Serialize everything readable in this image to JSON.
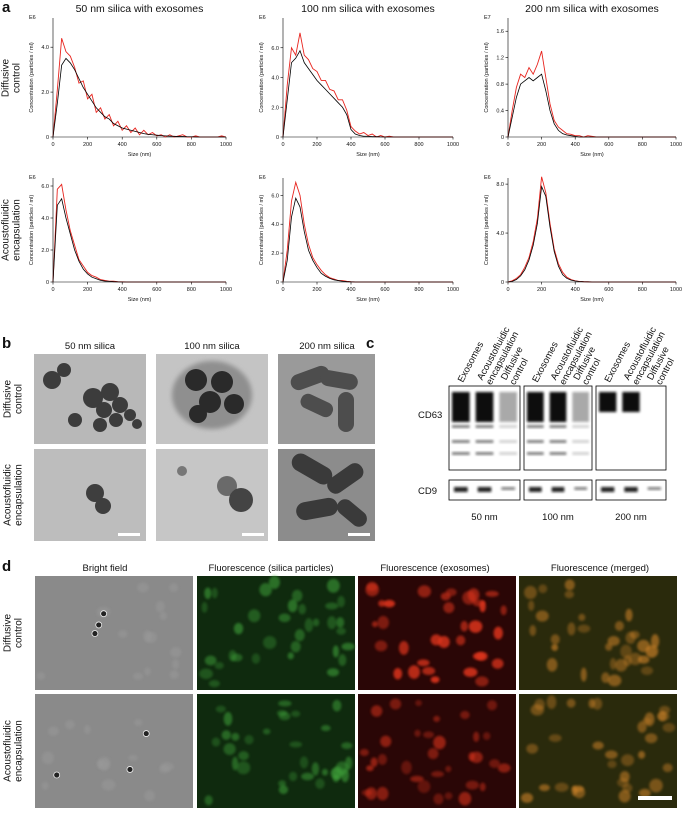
{
  "panel_a": {
    "letter": "a",
    "row_labels": [
      [
        "Diffusive",
        "control"
      ],
      [
        "Acoustofluidic",
        "encapsulation"
      ]
    ]
  },
  "chart_data": [
    {
      "type": "line",
      "title": "50 nm silica with exosomes",
      "multiplier": "E6",
      "x_label": "Size (nm)",
      "y_label": "Concentration (particles / ml)",
      "x": [
        0,
        25,
        50,
        75,
        100,
        125,
        150,
        175,
        200,
        225,
        250,
        275,
        300,
        325,
        350,
        375,
        400,
        425,
        450,
        475,
        500,
        525,
        550,
        575,
        600,
        625,
        650,
        675,
        700,
        725,
        750,
        775,
        800,
        825,
        850,
        875,
        900,
        925,
        950,
        975,
        1000
      ],
      "series": [
        {
          "color": "#e8251f",
          "values": [
            0,
            2.1,
            4.4,
            3.8,
            3.6,
            3.1,
            2.4,
            2.5,
            1.7,
            1.9,
            1.1,
            1.3,
            0.8,
            1.0,
            0.5,
            0.7,
            0.3,
            0.5,
            0.2,
            0.4,
            0.1,
            0.3,
            0.1,
            0.2,
            0.05,
            0.1,
            0,
            0.1,
            0,
            0.05,
            0.1,
            0,
            0,
            0.05,
            0,
            0,
            0,
            0,
            0,
            0.05,
            0
          ]
        },
        {
          "color": "#000000",
          "values": [
            0,
            1.5,
            3.2,
            3.5,
            3.3,
            3.0,
            2.6,
            2.2,
            1.9,
            1.6,
            1.3,
            1.1,
            0.9,
            0.8,
            0.6,
            0.5,
            0.4,
            0.35,
            0.3,
            0.25,
            0.2,
            0.15,
            0.12,
            0.1,
            0.08,
            0.06,
            0.05,
            0.04,
            0.03,
            0.02,
            0.02,
            0.01,
            0.01,
            0,
            0,
            0,
            0,
            0,
            0,
            0,
            0
          ]
        }
      ],
      "xlim": [
        0,
        1000
      ],
      "xticks": [
        0,
        200,
        400,
        600,
        800,
        1000
      ],
      "ylim": [
        0,
        5.3
      ],
      "yticks": [
        0,
        {
          "value": 2,
          "label": "2.0"
        },
        {
          "value": 4,
          "label": "4.0"
        }
      ]
    },
    {
      "type": "line",
      "title": "100 nm silica with exosomes",
      "multiplier": "E6",
      "x_label": "Size (nm)",
      "y_label": "Concentration (particles / ml)",
      "x": [
        0,
        25,
        50,
        75,
        100,
        125,
        150,
        175,
        200,
        225,
        250,
        275,
        300,
        325,
        350,
        375,
        400,
        425,
        450,
        475,
        500,
        525,
        550,
        575,
        600,
        625,
        650,
        675,
        700,
        725,
        750,
        775,
        800,
        825,
        850,
        875,
        900,
        925,
        950,
        975,
        1000
      ],
      "series": [
        {
          "color": "#e8251f",
          "values": [
            0,
            3.5,
            6.0,
            5.5,
            7.0,
            5.5,
            5.2,
            4.6,
            4.4,
            3.8,
            3.8,
            3.2,
            3.1,
            2.5,
            2.5,
            1.8,
            0.7,
            0.4,
            0.2,
            0.3,
            0.1,
            0.2,
            0,
            0.1,
            0,
            0.05,
            0,
            0,
            0,
            0,
            0,
            0,
            0,
            0,
            0,
            0,
            0,
            0,
            0,
            0,
            0
          ]
        },
        {
          "color": "#000000",
          "values": [
            0,
            2.5,
            5.0,
            5.3,
            5.8,
            5.0,
            4.6,
            4.2,
            3.8,
            3.5,
            3.2,
            2.9,
            2.6,
            2.3,
            2.0,
            1.5,
            0.5,
            0.2,
            0.1,
            0.05,
            0.05,
            0.02,
            0.02,
            0.01,
            0,
            0,
            0,
            0,
            0,
            0,
            0,
            0,
            0,
            0,
            0,
            0,
            0,
            0,
            0,
            0,
            0
          ]
        }
      ],
      "xlim": [
        0,
        1000
      ],
      "xticks": [
        0,
        200,
        400,
        600,
        800,
        1000
      ],
      "ylim": [
        0,
        8
      ],
      "yticks": [
        0,
        {
          "value": 2,
          "label": "2.0"
        },
        {
          "value": 4,
          "label": "4.0"
        },
        {
          "value": 6,
          "label": "6.0"
        }
      ]
    },
    {
      "type": "line",
      "title": "200 nm silica with exosomes",
      "multiplier": "E7",
      "x_label": "Size (nm)",
      "y_label": "Concentration (particles / ml)",
      "x": [
        0,
        25,
        50,
        75,
        100,
        125,
        150,
        175,
        200,
        225,
        250,
        275,
        300,
        325,
        350,
        375,
        400,
        425,
        450,
        475,
        500,
        525,
        550,
        575,
        600,
        625,
        650,
        675,
        700,
        725,
        750,
        775,
        800,
        825,
        850,
        875,
        900,
        925,
        950,
        975,
        1000
      ],
      "series": [
        {
          "color": "#e8251f",
          "values": [
            0,
            0.4,
            0.75,
            0.95,
            0.9,
            1.05,
            0.95,
            1.1,
            1.3,
            0.9,
            0.5,
            0.25,
            0.15,
            0.1,
            0.05,
            0.04,
            0.02,
            0.02,
            0,
            0.02,
            0.01,
            0,
            0,
            0,
            0,
            0,
            0,
            0,
            0,
            0,
            0,
            0,
            0,
            0,
            0,
            0,
            0,
            0,
            0,
            0,
            0
          ]
        },
        {
          "color": "#000000",
          "values": [
            0,
            0.3,
            0.6,
            0.8,
            0.85,
            0.9,
            0.85,
            0.9,
            0.95,
            0.7,
            0.4,
            0.2,
            0.1,
            0.05,
            0.03,
            0.02,
            0.01,
            0,
            0,
            0,
            0,
            0,
            0,
            0,
            0,
            0,
            0,
            0,
            0,
            0,
            0,
            0,
            0,
            0,
            0,
            0,
            0,
            0,
            0,
            0,
            0
          ]
        }
      ],
      "xlim": [
        0,
        1000
      ],
      "xticks": [
        0,
        200,
        400,
        600,
        800,
        1000
      ],
      "ylim": [
        0,
        1.8
      ],
      "yticks": [
        0,
        0.4,
        0.8,
        1.2,
        1.6
      ]
    },
    {
      "type": "line",
      "multiplier": "E6",
      "x_label": "Size (nm)",
      "y_label": "Concentration (particles / ml)",
      "x": [
        0,
        25,
        50,
        75,
        100,
        125,
        150,
        175,
        200,
        225,
        250,
        275,
        300,
        325,
        350,
        375,
        400,
        425,
        450,
        475,
        500,
        525,
        550,
        575,
        600,
        625,
        650,
        675,
        700,
        725,
        750,
        775,
        800,
        825,
        850,
        875,
        900,
        925,
        950,
        975,
        1000
      ],
      "series": [
        {
          "color": "#e8251f",
          "values": [
            0,
            5.8,
            6.1,
            4.5,
            3.2,
            2.3,
            1.4,
            1.0,
            0.6,
            0.4,
            0.3,
            0.15,
            0.1,
            0.05,
            0.05,
            0.02,
            0.01,
            0,
            0,
            0,
            0,
            0,
            0,
            0,
            0,
            0,
            0,
            0,
            0,
            0,
            0,
            0,
            0,
            0,
            0,
            0,
            0,
            0,
            0,
            0,
            0
          ]
        },
        {
          "color": "#000000",
          "values": [
            0,
            4.8,
            5.2,
            4.0,
            3.0,
            2.0,
            1.3,
            0.8,
            0.5,
            0.3,
            0.2,
            0.1,
            0.06,
            0.04,
            0.02,
            0.01,
            0,
            0,
            0,
            0,
            0,
            0,
            0,
            0,
            0,
            0,
            0,
            0,
            0,
            0,
            0,
            0,
            0,
            0,
            0,
            0,
            0,
            0,
            0,
            0,
            0
          ]
        }
      ],
      "xlim": [
        0,
        1000
      ],
      "xticks": [
        0,
        200,
        400,
        600,
        800,
        1000
      ],
      "ylim": [
        0,
        6.5
      ],
      "yticks": [
        0,
        {
          "value": 2,
          "label": "2.0"
        },
        {
          "value": 4,
          "label": "4.0"
        },
        {
          "value": 6,
          "label": "6.0"
        }
      ]
    },
    {
      "type": "line",
      "multiplier": "E6",
      "x_label": "Size (nm)",
      "y_label": "Concentration (particles / ml)",
      "x": [
        0,
        25,
        50,
        75,
        100,
        125,
        150,
        175,
        200,
        225,
        250,
        275,
        300,
        325,
        350,
        375,
        400,
        425,
        450,
        475,
        500,
        525,
        550,
        575,
        600,
        625,
        650,
        675,
        700,
        725,
        750,
        775,
        800,
        825,
        850,
        875,
        900,
        925,
        950,
        975,
        1000
      ],
      "series": [
        {
          "color": "#e8251f",
          "values": [
            0,
            2.2,
            5.6,
            6.9,
            6.0,
            4.0,
            2.6,
            1.7,
            1.2,
            0.8,
            0.5,
            0.3,
            0.2,
            0.1,
            0.1,
            0.05,
            0.02,
            0,
            0,
            0,
            0,
            0,
            0,
            0,
            0,
            0,
            0,
            0,
            0,
            0,
            0,
            0,
            0,
            0,
            0,
            0,
            0,
            0,
            0,
            0,
            0
          ]
        },
        {
          "color": "#000000",
          "values": [
            0,
            1.5,
            4.5,
            5.8,
            5.2,
            3.5,
            2.2,
            1.5,
            1.0,
            0.6,
            0.4,
            0.25,
            0.15,
            0.1,
            0.05,
            0.02,
            0.01,
            0,
            0,
            0,
            0,
            0,
            0,
            0,
            0,
            0,
            0,
            0,
            0,
            0,
            0,
            0,
            0,
            0,
            0,
            0,
            0,
            0,
            0,
            0,
            0
          ]
        }
      ],
      "xlim": [
        0,
        1000
      ],
      "xticks": [
        0,
        200,
        400,
        600,
        800,
        1000
      ],
      "ylim": [
        0,
        7.2
      ],
      "yticks": [
        0,
        {
          "value": 2,
          "label": "2.0"
        },
        {
          "value": 4,
          "label": "4.0"
        },
        {
          "value": 6,
          "label": "6.0"
        }
      ]
    },
    {
      "type": "line",
      "multiplier": "E6",
      "x_label": "Size (nm)",
      "y_label": "Concentration (particles / ml)",
      "x": [
        0,
        25,
        50,
        75,
        100,
        125,
        150,
        175,
        200,
        225,
        250,
        275,
        300,
        325,
        350,
        375,
        400,
        425,
        450,
        475,
        500,
        525,
        550,
        575,
        600,
        625,
        650,
        675,
        700,
        725,
        750,
        775,
        800,
        825,
        850,
        875,
        900,
        925,
        950,
        975,
        1000
      ],
      "series": [
        {
          "color": "#e8251f",
          "values": [
            0,
            0.1,
            0.3,
            0.6,
            1.2,
            2.0,
            3.3,
            5.2,
            8.6,
            7.3,
            4.8,
            2.7,
            1.5,
            0.8,
            0.4,
            0.2,
            0.1,
            0.05,
            0.03,
            0.02,
            0,
            0,
            0,
            0,
            0,
            0,
            0,
            0,
            0,
            0,
            0,
            0,
            0,
            0,
            0,
            0,
            0,
            0,
            0,
            0,
            0
          ]
        },
        {
          "color": "#000000",
          "values": [
            0,
            0.05,
            0.2,
            0.5,
            1.0,
            1.8,
            3.0,
            4.8,
            7.8,
            7.0,
            4.5,
            2.5,
            1.3,
            0.6,
            0.3,
            0.15,
            0.08,
            0.04,
            0.02,
            0.01,
            0,
            0,
            0,
            0,
            0,
            0,
            0,
            0,
            0,
            0,
            0,
            0,
            0,
            0,
            0,
            0,
            0,
            0,
            0,
            0,
            0
          ]
        }
      ],
      "xlim": [
        0,
        1000
      ],
      "xticks": [
        0,
        200,
        400,
        600,
        800,
        1000
      ],
      "ylim": [
        0,
        8.5
      ],
      "yticks": [
        0,
        {
          "value": 4,
          "label": "4.0"
        },
        {
          "value": 8,
          "label": "8.0"
        }
      ]
    }
  ],
  "panel_b": {
    "letter": "b",
    "column_titles": [
      "50 nm silica",
      "100 nm silica",
      "200 nm silica"
    ],
    "row_labels": [
      [
        "Diffusive",
        "control"
      ],
      [
        "Acoustofluidic",
        "encapsulation"
      ]
    ]
  },
  "panel_c": {
    "letter": "c",
    "lanes": [
      [
        "Exosomes"
      ],
      [
        "Acoustofluidic",
        "encapsulation"
      ],
      [
        "Diffusive",
        "control"
      ]
    ],
    "markers": [
      "CD63",
      "CD9"
    ],
    "groups": [
      "50 nm",
      "100 nm",
      "200 nm"
    ]
  },
  "panel_d": {
    "letter": "d",
    "column_titles": [
      "Bright field",
      "Fluorescence (silica particles)",
      "Fluorescence (exosomes)",
      "Fluorescence (merged)"
    ],
    "row_labels": [
      [
        "Diffusive",
        "control"
      ],
      [
        "Acoustofluidic",
        "encapsulation"
      ]
    ]
  }
}
